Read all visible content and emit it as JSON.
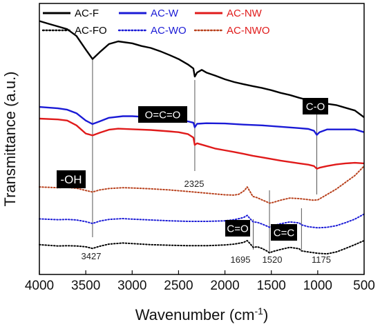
{
  "chart_data": {
    "type": "line",
    "title": "",
    "xlabel_main": "Wavenumber (cm",
    "xlabel_sup": "-1",
    "xlabel_close": ")",
    "ylabel": "Transmittance (a.u.)",
    "xlim": [
      4000,
      500
    ],
    "x_ticks": [
      4000,
      3500,
      3000,
      2500,
      2000,
      1500,
      1000,
      500
    ],
    "grid": false,
    "legend_position": "top",
    "series": [
      {
        "name": "AC-F",
        "color": "#000000",
        "style": "solid",
        "points": [
          [
            4000,
            93.5
          ],
          [
            3900,
            92.5
          ],
          [
            3800,
            91.5
          ],
          [
            3700,
            90.5
          ],
          [
            3600,
            88
          ],
          [
            3500,
            83
          ],
          [
            3427,
            79.5
          ],
          [
            3350,
            82
          ],
          [
            3250,
            85
          ],
          [
            3150,
            86
          ],
          [
            3000,
            85.3
          ],
          [
            2900,
            84.3
          ],
          [
            2800,
            83.6
          ],
          [
            2700,
            82.4
          ],
          [
            2600,
            81
          ],
          [
            2500,
            79.5
          ],
          [
            2400,
            77.5
          ],
          [
            2340,
            76
          ],
          [
            2325,
            73
          ],
          [
            2300,
            74.5
          ],
          [
            2250,
            75.5
          ],
          [
            2200,
            74.5
          ],
          [
            2100,
            73.3
          ],
          [
            2000,
            72
          ],
          [
            1900,
            71
          ],
          [
            1800,
            70.2
          ],
          [
            1700,
            69.5
          ],
          [
            1600,
            68.8
          ],
          [
            1500,
            68
          ],
          [
            1400,
            67
          ],
          [
            1300,
            66.2
          ],
          [
            1200,
            65.2
          ],
          [
            1100,
            64.3
          ],
          [
            1040,
            63.5
          ],
          [
            1010,
            62.5
          ],
          [
            980,
            63
          ],
          [
            900,
            63
          ],
          [
            800,
            62.5
          ],
          [
            700,
            61.5
          ],
          [
            600,
            60.5
          ],
          [
            500,
            58
          ]
        ]
      },
      {
        "name": "AC-W",
        "color": "#1a1ad6",
        "style": "solid",
        "points": [
          [
            4000,
            61.8
          ],
          [
            3800,
            61.3
          ],
          [
            3700,
            60.8
          ],
          [
            3600,
            59.5
          ],
          [
            3500,
            56.8
          ],
          [
            3427,
            55.5
          ],
          [
            3350,
            56.5
          ],
          [
            3250,
            57.8
          ],
          [
            3100,
            58.4
          ],
          [
            3000,
            58.4
          ],
          [
            2800,
            58
          ],
          [
            2600,
            57.5
          ],
          [
            2500,
            57
          ],
          [
            2400,
            56.5
          ],
          [
            2340,
            56
          ],
          [
            2325,
            54.3
          ],
          [
            2300,
            55.6
          ],
          [
            2200,
            55.8
          ],
          [
            2000,
            55.7
          ],
          [
            1800,
            55.3
          ],
          [
            1600,
            55
          ],
          [
            1400,
            54.5
          ],
          [
            1200,
            54
          ],
          [
            1100,
            53.7
          ],
          [
            1040,
            53
          ],
          [
            1010,
            51.5
          ],
          [
            980,
            52.5
          ],
          [
            900,
            53.5
          ],
          [
            800,
            53.5
          ],
          [
            700,
            53.5
          ],
          [
            600,
            53.5
          ],
          [
            500,
            52.5
          ]
        ]
      },
      {
        "name": "AC-NW",
        "color": "#e01a1a",
        "style": "solid",
        "points": [
          [
            4000,
            57.5
          ],
          [
            3800,
            57.2
          ],
          [
            3700,
            56.8
          ],
          [
            3600,
            55
          ],
          [
            3500,
            52
          ],
          [
            3427,
            51.3
          ],
          [
            3350,
            52.3
          ],
          [
            3250,
            53.4
          ],
          [
            3150,
            53.8
          ],
          [
            3000,
            53.6
          ],
          [
            2800,
            53.3
          ],
          [
            2600,
            52.8
          ],
          [
            2500,
            52.5
          ],
          [
            2400,
            51.8
          ],
          [
            2340,
            50.5
          ],
          [
            2325,
            47.8
          ],
          [
            2300,
            48.4
          ],
          [
            2200,
            47.4
          ],
          [
            2100,
            46.4
          ],
          [
            2000,
            45.8
          ],
          [
            1900,
            45.2
          ],
          [
            1800,
            44.5
          ],
          [
            1700,
            43.8
          ],
          [
            1600,
            43.2
          ],
          [
            1500,
            42.6
          ],
          [
            1400,
            42
          ],
          [
            1300,
            41.5
          ],
          [
            1200,
            41
          ],
          [
            1100,
            40.5
          ],
          [
            1040,
            40
          ],
          [
            1010,
            39
          ],
          [
            980,
            39.4
          ],
          [
            900,
            40
          ],
          [
            800,
            40.6
          ],
          [
            700,
            41
          ],
          [
            600,
            41.2
          ],
          [
            500,
            41
          ]
        ]
      },
      {
        "name": "AC-FO",
        "color": "#000000",
        "style": "dotted",
        "points": [
          [
            4000,
            11
          ],
          [
            3800,
            10.5
          ],
          [
            3700,
            10.6
          ],
          [
            3600,
            10.5
          ],
          [
            3500,
            10.2
          ],
          [
            3427,
            9.6
          ],
          [
            3350,
            10.4
          ],
          [
            3250,
            11.2
          ],
          [
            3100,
            11.6
          ],
          [
            3000,
            11.4
          ],
          [
            2800,
            11
          ],
          [
            2600,
            10.8
          ],
          [
            2400,
            10.6
          ],
          [
            2200,
            10.6
          ],
          [
            2000,
            10.9
          ],
          [
            1900,
            11.2
          ],
          [
            1800,
            11.8
          ],
          [
            1760,
            12.5
          ],
          [
            1730,
            11.4
          ],
          [
            1695,
            10
          ],
          [
            1650,
            10.2
          ],
          [
            1600,
            9.6
          ],
          [
            1550,
            8.7
          ],
          [
            1520,
            8
          ],
          [
            1480,
            8.5
          ],
          [
            1400,
            9.2
          ],
          [
            1300,
            10
          ],
          [
            1200,
            9.5
          ],
          [
            1175,
            8.7
          ],
          [
            1100,
            8.3
          ],
          [
            1000,
            7.8
          ],
          [
            900,
            7.6
          ],
          [
            800,
            8.3
          ],
          [
            700,
            9.6
          ],
          [
            600,
            11
          ],
          [
            500,
            12.5
          ]
        ]
      },
      {
        "name": "AC-WO",
        "color": "#1a1ad6",
        "style": "dotted",
        "points": [
          [
            4000,
            20.5
          ],
          [
            3800,
            20.2
          ],
          [
            3700,
            20.3
          ],
          [
            3600,
            20.1
          ],
          [
            3500,
            19.5
          ],
          [
            3427,
            18.8
          ],
          [
            3350,
            19.7
          ],
          [
            3250,
            20.3
          ],
          [
            3100,
            20.6
          ],
          [
            3000,
            20.4
          ],
          [
            2800,
            20.1
          ],
          [
            2600,
            19.8
          ],
          [
            2400,
            19.6
          ],
          [
            2200,
            19.6
          ],
          [
            2000,
            19.8
          ],
          [
            1900,
            20.2
          ],
          [
            1800,
            21
          ],
          [
            1760,
            21.8
          ],
          [
            1730,
            20.6
          ],
          [
            1695,
            19.4
          ],
          [
            1650,
            19.2
          ],
          [
            1600,
            18.6
          ],
          [
            1550,
            17.9
          ],
          [
            1520,
            17.4
          ],
          [
            1480,
            18
          ],
          [
            1400,
            18.7
          ],
          [
            1300,
            19.4
          ],
          [
            1200,
            19
          ],
          [
            1175,
            18.3
          ],
          [
            1100,
            17.6
          ],
          [
            1000,
            17.2
          ],
          [
            900,
            17.4
          ],
          [
            800,
            18
          ],
          [
            700,
            19.1
          ],
          [
            600,
            20.4
          ],
          [
            500,
            22.3
          ]
        ]
      },
      {
        "name": "AC-NWO",
        "color": "#b8401c",
        "style": "dotted",
        "points": [
          [
            4000,
            32.3
          ],
          [
            3800,
            32
          ],
          [
            3700,
            32.1
          ],
          [
            3600,
            31.8
          ],
          [
            3500,
            31
          ],
          [
            3427,
            30.4
          ],
          [
            3350,
            31.2
          ],
          [
            3250,
            31.7
          ],
          [
            3100,
            32
          ],
          [
            3000,
            31.9
          ],
          [
            2800,
            31.6
          ],
          [
            2600,
            31.2
          ],
          [
            2400,
            30.6
          ],
          [
            2200,
            30
          ],
          [
            2000,
            29.4
          ],
          [
            1900,
            29.3
          ],
          [
            1850,
            29.6
          ],
          [
            1790,
            31
          ],
          [
            1760,
            32.3
          ],
          [
            1730,
            30.6
          ],
          [
            1700,
            28.8
          ],
          [
            1650,
            28.3
          ],
          [
            1600,
            27.5
          ],
          [
            1550,
            26.8
          ],
          [
            1520,
            26.3
          ],
          [
            1480,
            26.6
          ],
          [
            1400,
            27.4
          ],
          [
            1300,
            28.2
          ],
          [
            1200,
            28
          ],
          [
            1100,
            27.6
          ],
          [
            1050,
            27.4
          ],
          [
            1000,
            27.5
          ],
          [
            900,
            29.5
          ],
          [
            800,
            31.5
          ],
          [
            700,
            34
          ],
          [
            600,
            36.5
          ],
          [
            500,
            40
          ]
        ]
      }
    ],
    "vertical_markers": [
      {
        "x": 3427,
        "label": "3427"
      },
      {
        "x": 2325,
        "label": "2325"
      },
      {
        "x": 1695,
        "label": "1695"
      },
      {
        "x": 1520,
        "label": "1520"
      },
      {
        "x": 1175,
        "label": ""
      },
      {
        "x": 1010,
        "label": ""
      }
    ],
    "peak_labels": [
      {
        "x": 3427,
        "text": "3427"
      },
      {
        "x": 2325,
        "text": "2325"
      },
      {
        "x": 1695,
        "text": "1695"
      },
      {
        "x": 1520,
        "text": "1520"
      },
      {
        "x": 1175,
        "text": "1175"
      }
    ],
    "group_tags": [
      {
        "text": "-OH"
      },
      {
        "text": "O=C=O"
      },
      {
        "text": "C-O"
      },
      {
        "text": "C=O"
      },
      {
        "text": "C=C"
      }
    ]
  }
}
